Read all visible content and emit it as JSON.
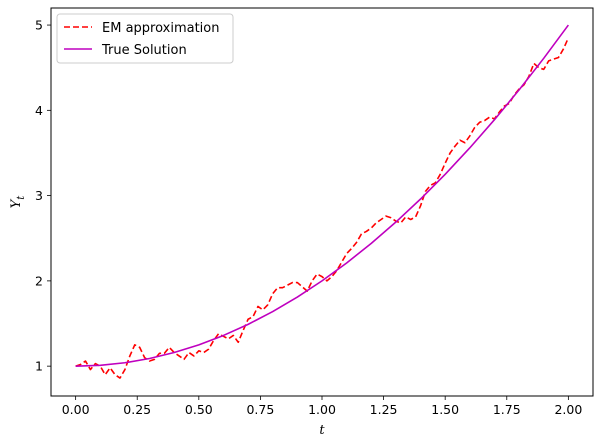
{
  "chart_data": {
    "type": "line",
    "xlabel": "t",
    "ylabel": "Y",
    "ylabel_subscript": "t",
    "xlim": [
      -0.1,
      2.1
    ],
    "ylim": [
      0.65,
      5.2
    ],
    "xticks": [
      "0.00",
      "0.25",
      "0.50",
      "0.75",
      "1.00",
      "1.25",
      "1.50",
      "1.75",
      "2.00"
    ],
    "xtick_values": [
      0,
      0.25,
      0.5,
      0.75,
      1.0,
      1.25,
      1.5,
      1.75,
      2.0
    ],
    "yticks": [
      "1",
      "2",
      "3",
      "4",
      "5"
    ],
    "ytick_values": [
      1,
      2,
      3,
      4,
      5
    ],
    "grid": false,
    "legend_position": "top-left",
    "series": [
      {
        "name": "EM approximation",
        "color": "#ff0000",
        "style": "dashed",
        "x": [
          0.0,
          0.02,
          0.04,
          0.06,
          0.08,
          0.1,
          0.12,
          0.14,
          0.16,
          0.18,
          0.2,
          0.22,
          0.24,
          0.26,
          0.28,
          0.3,
          0.32,
          0.34,
          0.36,
          0.38,
          0.4,
          0.42,
          0.44,
          0.46,
          0.48,
          0.5,
          0.52,
          0.54,
          0.56,
          0.58,
          0.6,
          0.62,
          0.64,
          0.66,
          0.68,
          0.7,
          0.72,
          0.74,
          0.76,
          0.78,
          0.8,
          0.82,
          0.84,
          0.86,
          0.88,
          0.9,
          0.92,
          0.94,
          0.96,
          0.98,
          1.0,
          1.02,
          1.04,
          1.06,
          1.08,
          1.1,
          1.12,
          1.14,
          1.16,
          1.18,
          1.2,
          1.22,
          1.24,
          1.26,
          1.28,
          1.3,
          1.32,
          1.34,
          1.36,
          1.38,
          1.4,
          1.42,
          1.44,
          1.46,
          1.48,
          1.5,
          1.52,
          1.54,
          1.56,
          1.58,
          1.6,
          1.62,
          1.64,
          1.66,
          1.68,
          1.7,
          1.72,
          1.74,
          1.76,
          1.78,
          1.8,
          1.82,
          1.84,
          1.86,
          1.88,
          1.9,
          1.92,
          1.94,
          1.96,
          1.98,
          2.0
        ],
        "y": [
          1.0,
          1.02,
          1.06,
          0.96,
          1.03,
          1.0,
          0.9,
          0.98,
          0.9,
          0.86,
          0.96,
          1.12,
          1.25,
          1.22,
          1.1,
          1.06,
          1.08,
          1.15,
          1.15,
          1.22,
          1.16,
          1.12,
          1.08,
          1.16,
          1.12,
          1.18,
          1.16,
          1.2,
          1.3,
          1.38,
          1.35,
          1.32,
          1.36,
          1.28,
          1.42,
          1.55,
          1.58,
          1.7,
          1.66,
          1.72,
          1.85,
          1.92,
          1.92,
          1.95,
          1.98,
          1.98,
          1.93,
          1.88,
          2.0,
          2.08,
          2.05,
          2.0,
          2.05,
          2.12,
          2.22,
          2.32,
          2.38,
          2.45,
          2.55,
          2.58,
          2.62,
          2.68,
          2.72,
          2.76,
          2.74,
          2.7,
          2.68,
          2.75,
          2.72,
          2.75,
          2.88,
          3.05,
          3.12,
          3.15,
          3.25,
          3.38,
          3.5,
          3.58,
          3.65,
          3.62,
          3.7,
          3.8,
          3.86,
          3.88,
          3.92,
          3.9,
          3.98,
          4.05,
          4.08,
          4.18,
          4.25,
          4.3,
          4.4,
          4.55,
          4.5,
          4.48,
          4.58,
          4.6,
          4.62,
          4.72,
          4.85
        ]
      },
      {
        "name": "True Solution",
        "color": "#bf00bf",
        "style": "solid",
        "x": [
          0.0,
          0.1,
          0.2,
          0.3,
          0.4,
          0.5,
          0.6,
          0.7,
          0.8,
          0.9,
          1.0,
          1.1,
          1.2,
          1.3,
          1.4,
          1.5,
          1.6,
          1.7,
          1.8,
          1.9,
          2.0
        ],
        "y": [
          1.0,
          1.01,
          1.04,
          1.09,
          1.16,
          1.25,
          1.36,
          1.49,
          1.64,
          1.81,
          2.0,
          2.21,
          2.44,
          2.69,
          2.96,
          3.25,
          3.56,
          3.89,
          4.24,
          4.61,
          5.0
        ]
      }
    ]
  }
}
